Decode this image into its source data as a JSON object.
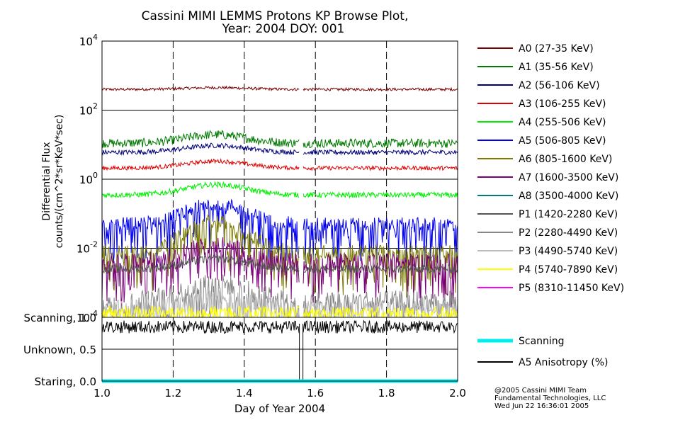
{
  "chart_data": [
    {
      "type": "line",
      "title_line1": "Cassini MIMI LEMMS Protons KP Browse Plot,",
      "title_line2": "Year: 2004 DOY: 001",
      "ylabel_line1": "Differential Flux",
      "ylabel_line2": "counts/(cm^2*sr*KeV*sec)",
      "yscale": "log",
      "ylim": [
        0.0001,
        10000
      ],
      "xlim": [
        1.0,
        2.0
      ],
      "y_ticks": [
        {
          "base": "10",
          "exp": "4"
        },
        {
          "base": "10",
          "exp": "2"
        },
        {
          "base": "10",
          "exp": "0"
        },
        {
          "base": "10",
          "exp": "-2"
        },
        {
          "base": "10",
          "exp": "-4"
        }
      ],
      "y_tick_values": [
        10000,
        100,
        1,
        0.01,
        0.0001
      ],
      "data_gap": [
        1.555,
        1.565
      ],
      "series": [
        {
          "name": "A0 (27-35 KeV)",
          "color": "#7a0000",
          "level": 400,
          "noise": 0.04,
          "bump": 0.05,
          "drops": false
        },
        {
          "name": "A1 (35-56 KeV)",
          "color": "#007a00",
          "level": 11,
          "noise": 0.13,
          "bump": 0.25,
          "drops": false
        },
        {
          "name": "A2 (56-106 KeV)",
          "color": "#00007a",
          "level": 6,
          "noise": 0.07,
          "bump": 0.2,
          "drops": false
        },
        {
          "name": "A3 (106-255 KeV)",
          "color": "#dd0000",
          "level": 2.1,
          "noise": 0.06,
          "bump": 0.2,
          "drops": false
        },
        {
          "name": "A4 (255-506 KeV)",
          "color": "#00ee00",
          "level": 0.35,
          "noise": 0.08,
          "bump": 0.3,
          "drops": false
        },
        {
          "name": "A5 (506-805 KeV)",
          "color": "#0000ee",
          "level": 0.05,
          "noise": 0.2,
          "bump": 0.6,
          "drops": true
        },
        {
          "name": "A6 (805-1600 KeV)",
          "color": "#7a7a00",
          "level": 0.008,
          "noise": 0.2,
          "bump": 0.9,
          "drops": true
        },
        {
          "name": "A7 (1600-3500 KeV)",
          "color": "#7a007a",
          "level": 0.004,
          "noise": 0.25,
          "bump": 0.5,
          "drops": true
        },
        {
          "name": "A8 (3500-4000 KeV)",
          "color": "#007a7a",
          "level": 0.0001,
          "noise": 0.0,
          "bump": 0.0,
          "drops": false
        },
        {
          "name": "P1 (1420-2280 KeV)",
          "color": "#555555",
          "level": 0.0025,
          "noise": 0.12,
          "bump": 0.3,
          "drops": false
        },
        {
          "name": "P2 (2280-4490 KeV)",
          "color": "#888888",
          "level": 0.0003,
          "noise": 0.3,
          "bump": 0.5,
          "drops": true
        },
        {
          "name": "P3 (4490-5740 KeV)",
          "color": "#bbbbbb",
          "level": 0.0002,
          "noise": 0.2,
          "bump": 0.3,
          "drops": true
        },
        {
          "name": "P4 (5740-7890 KeV)",
          "color": "#ffff00",
          "level": 0.00015,
          "noise": 0.15,
          "bump": 0.0,
          "drops": true
        },
        {
          "name": "P5 (8310-11450 KeV)",
          "color": "#ff00ff",
          "level": 0.0001,
          "noise": 0.0,
          "bump": 0.0,
          "drops": false
        }
      ]
    },
    {
      "type": "line",
      "ylim": [
        0.0,
        1.0
      ],
      "xlim": [
        1.0,
        2.0
      ],
      "y_tick_labels": [
        "Scanning, 1.0",
        "Unknown, 0.5",
        "Staring, 0.0"
      ],
      "y_tick_values": [
        1.0,
        0.5,
        0.0
      ],
      "x_tick_labels": [
        "1.0",
        "1.2",
        "1.4",
        "1.6",
        "1.8",
        "2.0"
      ],
      "x_tick_values": [
        1.0,
        1.2,
        1.4,
        1.6,
        1.8,
        2.0
      ],
      "xlabel": "Day of Year 2004",
      "series": [
        {
          "name": "Scanning",
          "color": "#00eeee",
          "value": 0.0
        },
        {
          "name": "A5 Anisotropy (%)",
          "color": "#000000",
          "value": 0.85
        }
      ]
    }
  ],
  "footer": {
    "line1": "@2005 Cassini MIMI Team",
    "line2": "Fundamental Technologies, LLC",
    "line3": "Wed Jun 22 16:36:01 2005"
  }
}
